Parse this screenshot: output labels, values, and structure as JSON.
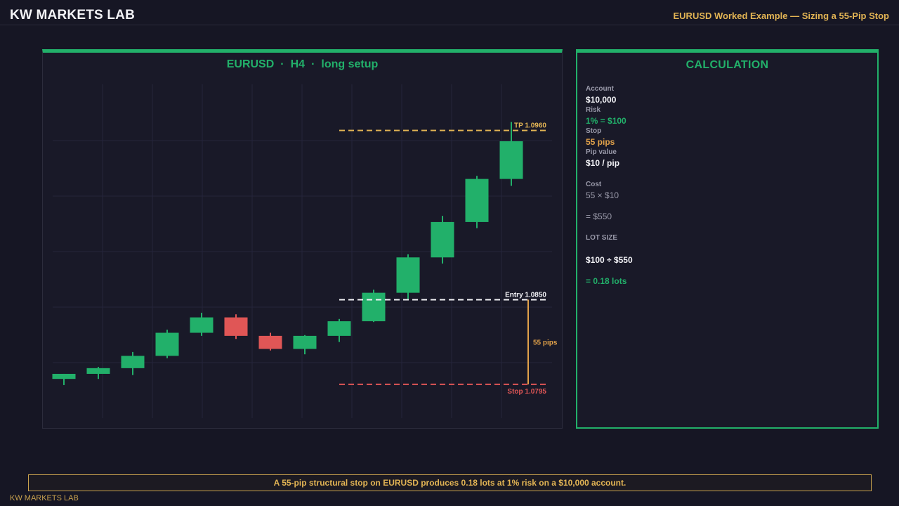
{
  "header": {
    "brand": "KW MARKETS LAB",
    "subtitle": "EURUSD Worked Example — Sizing a 55-Pip Stop"
  },
  "chart_panel": {
    "symbol": "EURUSD",
    "timeframe": "H4",
    "setup": "long setup",
    "separator": "·"
  },
  "chart_data": {
    "type": "candlestick",
    "ylim": [
      1.0773,
      1.099
    ],
    "grid": true,
    "candles": [
      {
        "open": 1.07985,
        "high": 1.08018,
        "low": 1.07945,
        "close": 1.08018,
        "direction": "up"
      },
      {
        "open": 1.08018,
        "high": 1.08063,
        "low": 1.07985,
        "close": 1.08055,
        "direction": "up"
      },
      {
        "open": 1.08055,
        "high": 1.0816,
        "low": 1.0801,
        "close": 1.08135,
        "direction": "up"
      },
      {
        "open": 1.08135,
        "high": 1.08305,
        "low": 1.0812,
        "close": 1.08285,
        "direction": "up"
      },
      {
        "open": 1.08285,
        "high": 1.08415,
        "low": 1.08265,
        "close": 1.08385,
        "direction": "up"
      },
      {
        "open": 1.08385,
        "high": 1.08405,
        "low": 1.08245,
        "close": 1.08265,
        "direction": "down"
      },
      {
        "open": 1.08265,
        "high": 1.08285,
        "low": 1.0817,
        "close": 1.0818,
        "direction": "down"
      },
      {
        "open": 1.0818,
        "high": 1.0827,
        "low": 1.08145,
        "close": 1.08265,
        "direction": "up"
      },
      {
        "open": 1.08265,
        "high": 1.08375,
        "low": 1.08225,
        "close": 1.0836,
        "direction": "up"
      },
      {
        "open": 1.0836,
        "high": 1.08565,
        "low": 1.08355,
        "close": 1.08545,
        "direction": "up"
      },
      {
        "open": 1.08545,
        "high": 1.08795,
        "low": 1.08505,
        "close": 1.08775,
        "direction": "up"
      },
      {
        "open": 1.08775,
        "high": 1.09045,
        "low": 1.08735,
        "close": 1.09005,
        "direction": "up"
      },
      {
        "open": 1.09005,
        "high": 1.09305,
        "low": 1.08965,
        "close": 1.09285,
        "direction": "up"
      },
      {
        "open": 1.09285,
        "high": 1.09655,
        "low": 1.0924,
        "close": 1.0953,
        "direction": "up"
      }
    ],
    "levels": [
      {
        "name": "TP",
        "label": "TP 1.0960",
        "value": 1.096,
        "color": "#e2b454"
      },
      {
        "name": "Entry",
        "label": "Entry 1.0850",
        "value": 1.085,
        "color": "#f2f2f6"
      },
      {
        "name": "Stop",
        "label": "Stop 1.0795",
        "value": 1.0795,
        "color": "#e05656"
      }
    ],
    "distance_label": "55 pips",
    "colors": {
      "up": "#22b06a",
      "down": "#e05656",
      "distance": "#e2a24a",
      "grid": "#25253a"
    }
  },
  "calculation": {
    "title": "CALCULATION",
    "account_label": "Account",
    "account_value": "$10,000",
    "risk_label": "Risk",
    "risk_value": "1% = $100",
    "stop_label": "Stop",
    "stop_value": "55 pips",
    "pip_label": "Pip value",
    "pip_value": "$10 / pip",
    "cost_label": "Cost",
    "cost_expr": "55 × $10",
    "cost_result": "= $550",
    "lot_label": "LOT SIZE",
    "lot_expr": "$100 ÷ $550",
    "lot_result": "= 0.18 lots"
  },
  "footer": {
    "note": "A 55-pip structural stop on EURUSD produces 0.18 lots at 1% risk on a $10,000 account.",
    "brand": "KW MARKETS LAB"
  },
  "colors": {
    "background": "#161624",
    "accent_green": "#22b06a",
    "accent_gold": "#e2b454",
    "loss_red": "#e05656"
  }
}
